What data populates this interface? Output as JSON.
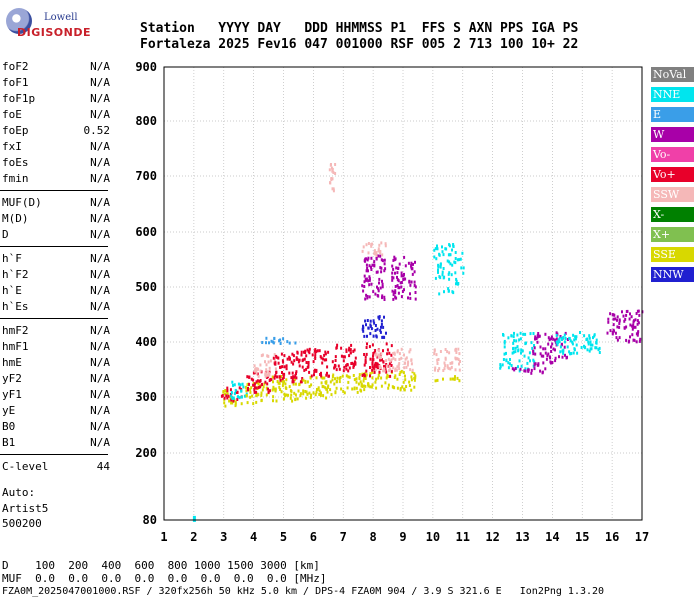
{
  "logo": {
    "line1": "Lowell",
    "line2": "DIGISONDE"
  },
  "header": {
    "row1": "Station   YYYY DAY   DDD HHMMSS P1  FFS S AXN PPS IGA PS",
    "row2": "Fortaleza 2025 Fev16 047 001000 RSF 005 2 713 100 10+ 22"
  },
  "params": [
    {
      "name": "foF2",
      "value": "N/A"
    },
    {
      "name": "foF1",
      "value": "N/A"
    },
    {
      "name": "foF1p",
      "value": "N/A"
    },
    {
      "name": "foE",
      "value": "N/A"
    },
    {
      "name": "foEp",
      "value": "0.52"
    },
    {
      "name": "fxI",
      "value": "N/A"
    },
    {
      "name": "foEs",
      "value": "N/A"
    },
    {
      "name": "fmin",
      "value": "N/A"
    },
    {
      "name": "MUF(D)",
      "value": "N/A"
    },
    {
      "name": "M(D)",
      "value": "N/A"
    },
    {
      "name": "D",
      "value": "N/A"
    },
    {
      "name": "h`F",
      "value": "N/A"
    },
    {
      "name": "h`F2",
      "value": "N/A"
    },
    {
      "name": "h`E",
      "value": "N/A"
    },
    {
      "name": "h`Es",
      "value": "N/A"
    },
    {
      "name": "hmF2",
      "value": "N/A"
    },
    {
      "name": "hmF1",
      "value": "N/A"
    },
    {
      "name": "hmE",
      "value": "N/A"
    },
    {
      "name": "yF2",
      "value": "N/A"
    },
    {
      "name": "yF1",
      "value": "N/A"
    },
    {
      "name": "yE",
      "value": "N/A"
    },
    {
      "name": "B0",
      "value": "N/A"
    },
    {
      "name": "B1",
      "value": "N/A"
    },
    {
      "name": "C-level",
      "value": "44"
    }
  ],
  "autoscale": {
    "line1": "Auto:",
    "line2": "Artist5",
    "line3": "500200"
  },
  "legend": [
    {
      "label": "NoVal",
      "color": "#808080"
    },
    {
      "label": "NNE",
      "color": "#00e5ee"
    },
    {
      "label": "E",
      "color": "#3a9ee8"
    },
    {
      "label": "W",
      "color": "#a800a8"
    },
    {
      "label": "Vo-",
      "color": "#f040a8"
    },
    {
      "label": "Vo+",
      "color": "#e8002a"
    },
    {
      "label": "SSW",
      "color": "#f5b8b8"
    },
    {
      "label": "X-",
      "color": "#008000"
    },
    {
      "label": "X+",
      "color": "#80c050"
    },
    {
      "label": "SSE",
      "color": "#d8d800"
    },
    {
      "label": "NNW",
      "color": "#2020d0"
    }
  ],
  "footer": {
    "line1": "D    100  200  400  600  800 1000 1500 3000 [km]",
    "line2": "MUF  0.0  0.0  0.0  0.0  0.0  0.0  0.0  0.0 [MHz]",
    "line3": "FZA0M_2025047001000.RSF / 320fx256h 50 kHz 5.0 km / DPS-4 FZA0M 904 / 3.9 S 321.6 E   Ion2Png 1.3.20"
  },
  "chart_data": {
    "type": "scatter",
    "xlim": [
      1,
      17
    ],
    "ylim": [
      80,
      900
    ],
    "x_ticks": [
      1,
      2,
      3,
      4,
      5,
      6,
      7,
      8,
      9,
      10,
      11,
      12,
      13,
      14,
      15,
      16,
      17
    ],
    "y_ticks": [
      80,
      200,
      300,
      400,
      500,
      600,
      700,
      800,
      900
    ],
    "grid": true,
    "clusters": [
      {
        "x": [
          2.9,
          3.6
        ],
        "y": [
          285,
          315
        ],
        "color": "#d8d800"
      },
      {
        "x": [
          2.9,
          3.6
        ],
        "y": [
          295,
          320
        ],
        "color": "#e8002a"
      },
      {
        "x": [
          3.2,
          3.8
        ],
        "y": [
          300,
          330
        ],
        "color": "#00e5ee"
      },
      {
        "x": [
          3.7,
          4.5
        ],
        "y": [
          290,
          330
        ],
        "color": "#d8d800"
      },
      {
        "x": [
          3.7,
          4.6
        ],
        "y": [
          310,
          350
        ],
        "color": "#e8002a"
      },
      {
        "x": [
          4.0,
          4.8
        ],
        "y": [
          340,
          380
        ],
        "color": "#f5b8b8"
      },
      {
        "x": [
          4.6,
          5.6
        ],
        "y": [
          295,
          340
        ],
        "color": "#d8d800"
      },
      {
        "x": [
          4.6,
          5.6
        ],
        "y": [
          330,
          385
        ],
        "color": "#e8002a"
      },
      {
        "x": [
          4.1,
          5.4
        ],
        "y": [
          400,
          410
        ],
        "color": "#3a9ee8"
      },
      {
        "x": [
          5.6,
          6.6
        ],
        "y": [
          300,
          340
        ],
        "color": "#d8d800"
      },
      {
        "x": [
          5.6,
          6.5
        ],
        "y": [
          340,
          390
        ],
        "color": "#e8002a"
      },
      {
        "x": [
          6.6,
          7.6
        ],
        "y": [
          310,
          345
        ],
        "color": "#d8d800"
      },
      {
        "x": [
          6.6,
          7.4
        ],
        "y": [
          350,
          400
        ],
        "color": "#e8002a"
      },
      {
        "x": [
          7.6,
          9.4
        ],
        "y": [
          315,
          350
        ],
        "color": "#d8d800"
      },
      {
        "x": [
          7.6,
          8.6
        ],
        "y": [
          340,
          400
        ],
        "color": "#e8002a"
      },
      {
        "x": [
          8.0,
          9.3
        ],
        "y": [
          350,
          390
        ],
        "color": "#f5b8b8"
      },
      {
        "x": [
          7.6,
          8.4
        ],
        "y": [
          410,
          450
        ],
        "color": "#2020d0"
      },
      {
        "x": [
          7.6,
          8.4
        ],
        "y": [
          480,
          560
        ],
        "color": "#a800a8"
      },
      {
        "x": [
          8.6,
          9.4
        ],
        "y": [
          480,
          560
        ],
        "color": "#a800a8"
      },
      {
        "x": [
          7.6,
          8.4
        ],
        "y": [
          560,
          585
        ],
        "color": "#f5b8b8"
      },
      {
        "x": [
          10.0,
          10.9
        ],
        "y": [
          330,
          340
        ],
        "color": "#d8d800"
      },
      {
        "x": [
          10.0,
          10.9
        ],
        "y": [
          350,
          390
        ],
        "color": "#f5b8b8"
      },
      {
        "x": [
          10.0,
          11.0
        ],
        "y": [
          490,
          580
        ],
        "color": "#00e5ee"
      },
      {
        "x": [
          12.2,
          13.4
        ],
        "y": [
          350,
          420
        ],
        "color": "#00e5ee"
      },
      {
        "x": [
          12.5,
          13.8
        ],
        "y": [
          345,
          355
        ],
        "color": "#a800a8"
      },
      {
        "x": [
          13.3,
          14.5
        ],
        "y": [
          360,
          420
        ],
        "color": "#a800a8"
      },
      {
        "x": [
          14.1,
          15.6
        ],
        "y": [
          380,
          420
        ],
        "color": "#00e5ee"
      },
      {
        "x": [
          15.8,
          17.0
        ],
        "y": [
          400,
          460
        ],
        "color": "#a800a8"
      },
      {
        "x": [
          6.5,
          6.7
        ],
        "y": [
          660,
          730
        ],
        "color": "#f5b8b8"
      }
    ]
  }
}
